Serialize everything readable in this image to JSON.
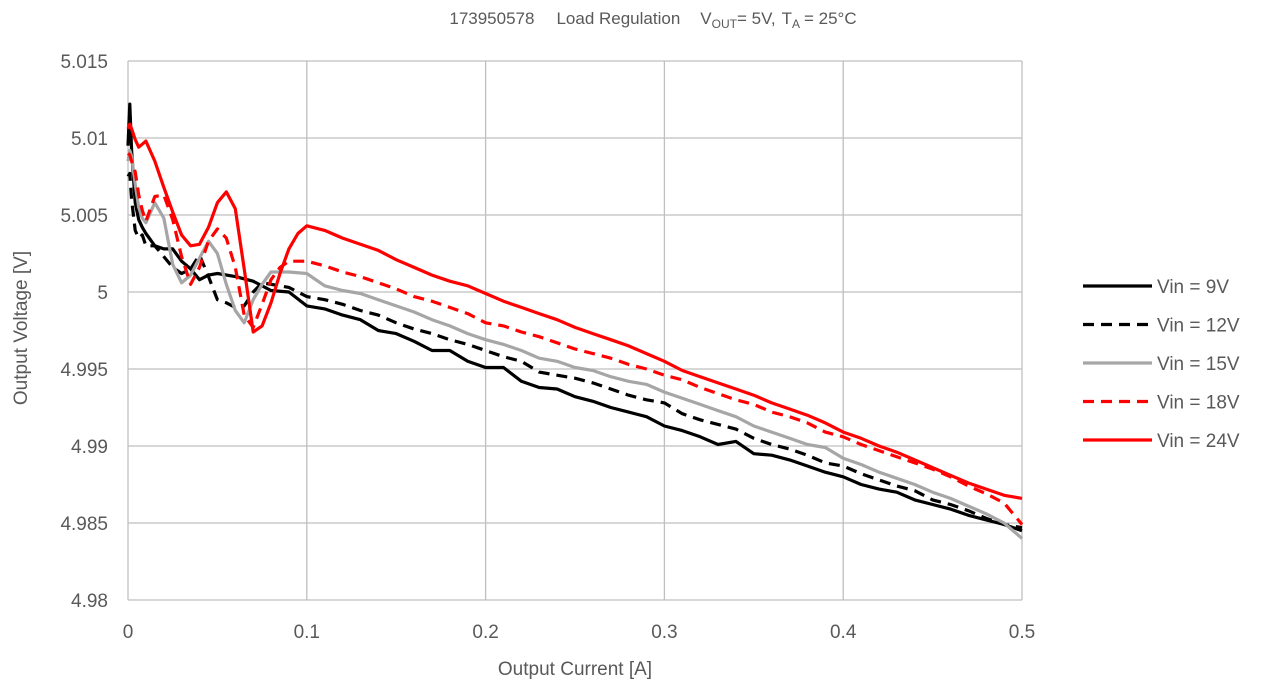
{
  "chart_data": {
    "type": "line",
    "title": {
      "id": "173950578",
      "name": "Load Regulation",
      "vout_prefix": "V",
      "vout_sub": "OUT",
      "vout_value": "= 5V,",
      "ta_prefix": "T",
      "ta_sub": "A",
      "ta_value": "= 25°C"
    },
    "xlabel": "Output Current [A]",
    "ylabel": "Output Voltage [V]",
    "xlim": [
      0,
      0.5
    ],
    "ylim": [
      4.98,
      5.015
    ],
    "x_ticks": [
      0,
      0.1,
      0.2,
      0.3,
      0.4,
      0.5
    ],
    "x_tick_labels": [
      "0",
      "0.1",
      "0.2",
      "0.3",
      "0.4",
      "0.5"
    ],
    "y_ticks": [
      4.98,
      4.985,
      4.99,
      4.995,
      5,
      5.005,
      5.01,
      5.015
    ],
    "y_tick_labels": [
      "4.98",
      "4.985",
      "4.99",
      "4.995",
      "5",
      "5.005",
      "5.01",
      "5.015"
    ],
    "grid": true,
    "legend_position": "right",
    "series": [
      {
        "name": "Vin = 9V",
        "color": "#000000",
        "dash": "solid",
        "x": [
          0,
          0.001,
          0.002,
          0.004,
          0.006,
          0.008,
          0.01,
          0.015,
          0.02,
          0.025,
          0.03,
          0.035,
          0.04,
          0.045,
          0.05,
          0.06,
          0.07,
          0.08,
          0.09,
          0.1,
          0.11,
          0.12,
          0.13,
          0.14,
          0.15,
          0.16,
          0.17,
          0.18,
          0.19,
          0.2,
          0.21,
          0.22,
          0.23,
          0.24,
          0.25,
          0.26,
          0.27,
          0.28,
          0.29,
          0.3,
          0.31,
          0.32,
          0.33,
          0.34,
          0.35,
          0.36,
          0.37,
          0.38,
          0.39,
          0.4,
          0.41,
          0.42,
          0.43,
          0.44,
          0.45,
          0.46,
          0.47,
          0.48,
          0.49,
          0.5
        ],
        "values": [
          5.0095,
          5.0122,
          5.0092,
          5.0058,
          5.0047,
          5.0042,
          5.0038,
          5.003,
          5.0028,
          5.0028,
          5.002,
          5.0015,
          5.0008,
          5.0011,
          5.0012,
          5.001,
          5.0007,
          5.0001,
          5.0,
          4.9991,
          4.9989,
          4.9985,
          4.9982,
          4.9975,
          4.9973,
          4.9968,
          4.9962,
          4.9962,
          4.9955,
          4.9951,
          4.9951,
          4.9942,
          4.9938,
          4.9937,
          4.9932,
          4.9929,
          4.9925,
          4.9922,
          4.9919,
          4.9913,
          4.991,
          4.9906,
          4.9901,
          4.9903,
          4.9895,
          4.9894,
          4.9891,
          4.9887,
          4.9883,
          4.988,
          4.9875,
          4.9872,
          4.987,
          4.9865,
          4.9862,
          4.9859,
          4.9855,
          4.9852,
          4.9849,
          4.9845
        ]
      },
      {
        "name": "Vin = 12V",
        "color": "#000000",
        "dash": "dashed",
        "x": [
          0,
          0.001,
          0.002,
          0.004,
          0.006,
          0.008,
          0.01,
          0.015,
          0.02,
          0.025,
          0.03,
          0.035,
          0.04,
          0.045,
          0.05,
          0.055,
          0.06,
          0.065,
          0.07,
          0.075,
          0.08,
          0.09,
          0.1,
          0.11,
          0.12,
          0.13,
          0.14,
          0.15,
          0.16,
          0.17,
          0.18,
          0.19,
          0.2,
          0.21,
          0.22,
          0.23,
          0.24,
          0.25,
          0.26,
          0.27,
          0.28,
          0.29,
          0.3,
          0.31,
          0.32,
          0.33,
          0.34,
          0.35,
          0.36,
          0.37,
          0.38,
          0.39,
          0.4,
          0.41,
          0.42,
          0.43,
          0.44,
          0.45,
          0.46,
          0.47,
          0.48,
          0.49,
          0.5
        ],
        "values": [
          5.0075,
          5.0077,
          5.006,
          5.004,
          5.0035,
          5.0037,
          5.003,
          5.003,
          5.0023,
          5.0016,
          5.0012,
          5.0015,
          5.0024,
          5.001,
          4.9995,
          4.9993,
          4.999,
          4.9991,
          5.0,
          5.0006,
          5.0005,
          5.0003,
          4.9997,
          4.9995,
          4.9992,
          4.9988,
          4.9985,
          4.998,
          4.9976,
          4.9973,
          4.9969,
          4.9966,
          4.9962,
          4.9958,
          4.9955,
          4.9948,
          4.9946,
          4.9944,
          4.9941,
          4.9937,
          4.9933,
          4.993,
          4.9928,
          4.9921,
          4.9917,
          4.9914,
          4.9911,
          4.9905,
          4.9901,
          4.9898,
          4.9894,
          4.9889,
          4.9887,
          4.9882,
          4.9878,
          4.9874,
          4.9871,
          4.9865,
          4.9862,
          4.9858,
          4.9853,
          4.9849,
          4.9847
        ]
      },
      {
        "name": "Vin = 15V",
        "color": "#a6a6a6",
        "dash": "solid",
        "x": [
          0,
          0.001,
          0.002,
          0.004,
          0.006,
          0.008,
          0.01,
          0.015,
          0.02,
          0.025,
          0.03,
          0.035,
          0.04,
          0.045,
          0.05,
          0.055,
          0.06,
          0.065,
          0.07,
          0.075,
          0.08,
          0.09,
          0.1,
          0.11,
          0.12,
          0.13,
          0.14,
          0.15,
          0.16,
          0.17,
          0.18,
          0.19,
          0.2,
          0.21,
          0.22,
          0.23,
          0.24,
          0.25,
          0.26,
          0.27,
          0.28,
          0.29,
          0.3,
          0.31,
          0.32,
          0.33,
          0.34,
          0.35,
          0.36,
          0.37,
          0.38,
          0.39,
          0.4,
          0.41,
          0.42,
          0.43,
          0.44,
          0.45,
          0.46,
          0.47,
          0.48,
          0.49,
          0.5
        ],
        "values": [
          5.0085,
          5.0092,
          5.0088,
          5.007,
          5.0055,
          5.0048,
          5.0045,
          5.0058,
          5.0048,
          5.0018,
          5.0006,
          5.0011,
          5.0022,
          5.0033,
          5.0025,
          5.0005,
          4.9988,
          4.998,
          4.9995,
          5.0005,
          5.0013,
          5.0013,
          5.0012,
          5.0004,
          5.0001,
          4.9999,
          4.9995,
          4.9991,
          4.9987,
          4.9982,
          4.9978,
          4.9973,
          4.9969,
          4.9966,
          4.9962,
          4.9957,
          4.9955,
          4.9951,
          4.9949,
          4.9945,
          4.9942,
          4.994,
          4.9935,
          4.9931,
          4.9927,
          4.9923,
          4.9919,
          4.9913,
          4.9909,
          4.9905,
          4.9901,
          4.9899,
          4.9892,
          4.9888,
          4.9883,
          4.9879,
          4.9875,
          4.987,
          4.9866,
          4.9861,
          4.9856,
          4.985,
          4.984
        ]
      },
      {
        "name": "Vin = 18V",
        "color": "#ff0000",
        "dash": "dashed",
        "x": [
          0,
          0.001,
          0.002,
          0.004,
          0.006,
          0.008,
          0.01,
          0.015,
          0.02,
          0.025,
          0.03,
          0.035,
          0.04,
          0.045,
          0.05,
          0.055,
          0.06,
          0.065,
          0.07,
          0.075,
          0.08,
          0.085,
          0.09,
          0.1,
          0.11,
          0.12,
          0.13,
          0.14,
          0.15,
          0.16,
          0.17,
          0.18,
          0.19,
          0.2,
          0.21,
          0.22,
          0.23,
          0.24,
          0.25,
          0.26,
          0.27,
          0.28,
          0.29,
          0.3,
          0.31,
          0.32,
          0.33,
          0.34,
          0.35,
          0.36,
          0.37,
          0.38,
          0.39,
          0.4,
          0.41,
          0.42,
          0.43,
          0.44,
          0.45,
          0.46,
          0.47,
          0.48,
          0.49,
          0.5
        ],
        "values": [
          5.009,
          5.0089,
          5.0085,
          5.0078,
          5.0063,
          5.0053,
          5.0046,
          5.0062,
          5.0063,
          5.0047,
          5.0023,
          5.0005,
          5.0016,
          5.0033,
          5.0041,
          5.0035,
          5.0016,
          4.9985,
          4.9977,
          4.9992,
          5.0008,
          5.0016,
          5.002,
          5.002,
          5.0017,
          5.0013,
          5.001,
          5.0006,
          5.0002,
          4.9997,
          4.9994,
          4.999,
          4.9986,
          4.998,
          4.9978,
          4.9974,
          4.9971,
          4.9967,
          4.9963,
          4.996,
          4.9957,
          4.9953,
          4.995,
          4.9946,
          4.9943,
          4.9938,
          4.9934,
          4.993,
          4.9927,
          4.9922,
          4.9919,
          4.9915,
          4.9909,
          4.9906,
          4.9901,
          4.9897,
          4.9893,
          4.9889,
          4.9885,
          4.988,
          4.9874,
          4.9869,
          4.9863,
          4.9849
        ]
      },
      {
        "name": "Vin = 24V",
        "color": "#ff0000",
        "dash": "solid",
        "x": [
          0,
          0.001,
          0.002,
          0.004,
          0.006,
          0.008,
          0.01,
          0.015,
          0.02,
          0.025,
          0.03,
          0.035,
          0.04,
          0.045,
          0.05,
          0.055,
          0.06,
          0.065,
          0.07,
          0.075,
          0.08,
          0.085,
          0.09,
          0.095,
          0.1,
          0.11,
          0.12,
          0.13,
          0.14,
          0.15,
          0.16,
          0.17,
          0.18,
          0.19,
          0.2,
          0.21,
          0.22,
          0.23,
          0.24,
          0.25,
          0.26,
          0.27,
          0.28,
          0.29,
          0.3,
          0.31,
          0.32,
          0.33,
          0.34,
          0.35,
          0.36,
          0.37,
          0.38,
          0.39,
          0.4,
          0.41,
          0.42,
          0.43,
          0.44,
          0.45,
          0.46,
          0.47,
          0.48,
          0.49,
          0.5
        ],
        "values": [
          5.0106,
          5.0109,
          5.0106,
          5.0099,
          5.0094,
          5.0096,
          5.0098,
          5.0085,
          5.0068,
          5.0052,
          5.0037,
          5.003,
          5.0031,
          5.0042,
          5.0058,
          5.0065,
          5.0054,
          5.0015,
          4.9974,
          4.9978,
          4.9993,
          5.0012,
          5.0028,
          5.0038,
          5.0043,
          5.004,
          5.0035,
          5.0031,
          5.0027,
          5.0021,
          5.0016,
          5.0011,
          5.0007,
          5.0004,
          4.9999,
          4.9994,
          4.999,
          4.9986,
          4.9982,
          4.9977,
          4.9973,
          4.9969,
          4.9965,
          4.996,
          4.9955,
          4.9949,
          4.9945,
          4.9941,
          4.9937,
          4.9933,
          4.9928,
          4.9924,
          4.992,
          4.9915,
          4.9909,
          4.9905,
          4.99,
          4.9896,
          4.9891,
          4.9886,
          4.9881,
          4.9876,
          4.9872,
          4.9868,
          4.9866
        ]
      }
    ]
  }
}
